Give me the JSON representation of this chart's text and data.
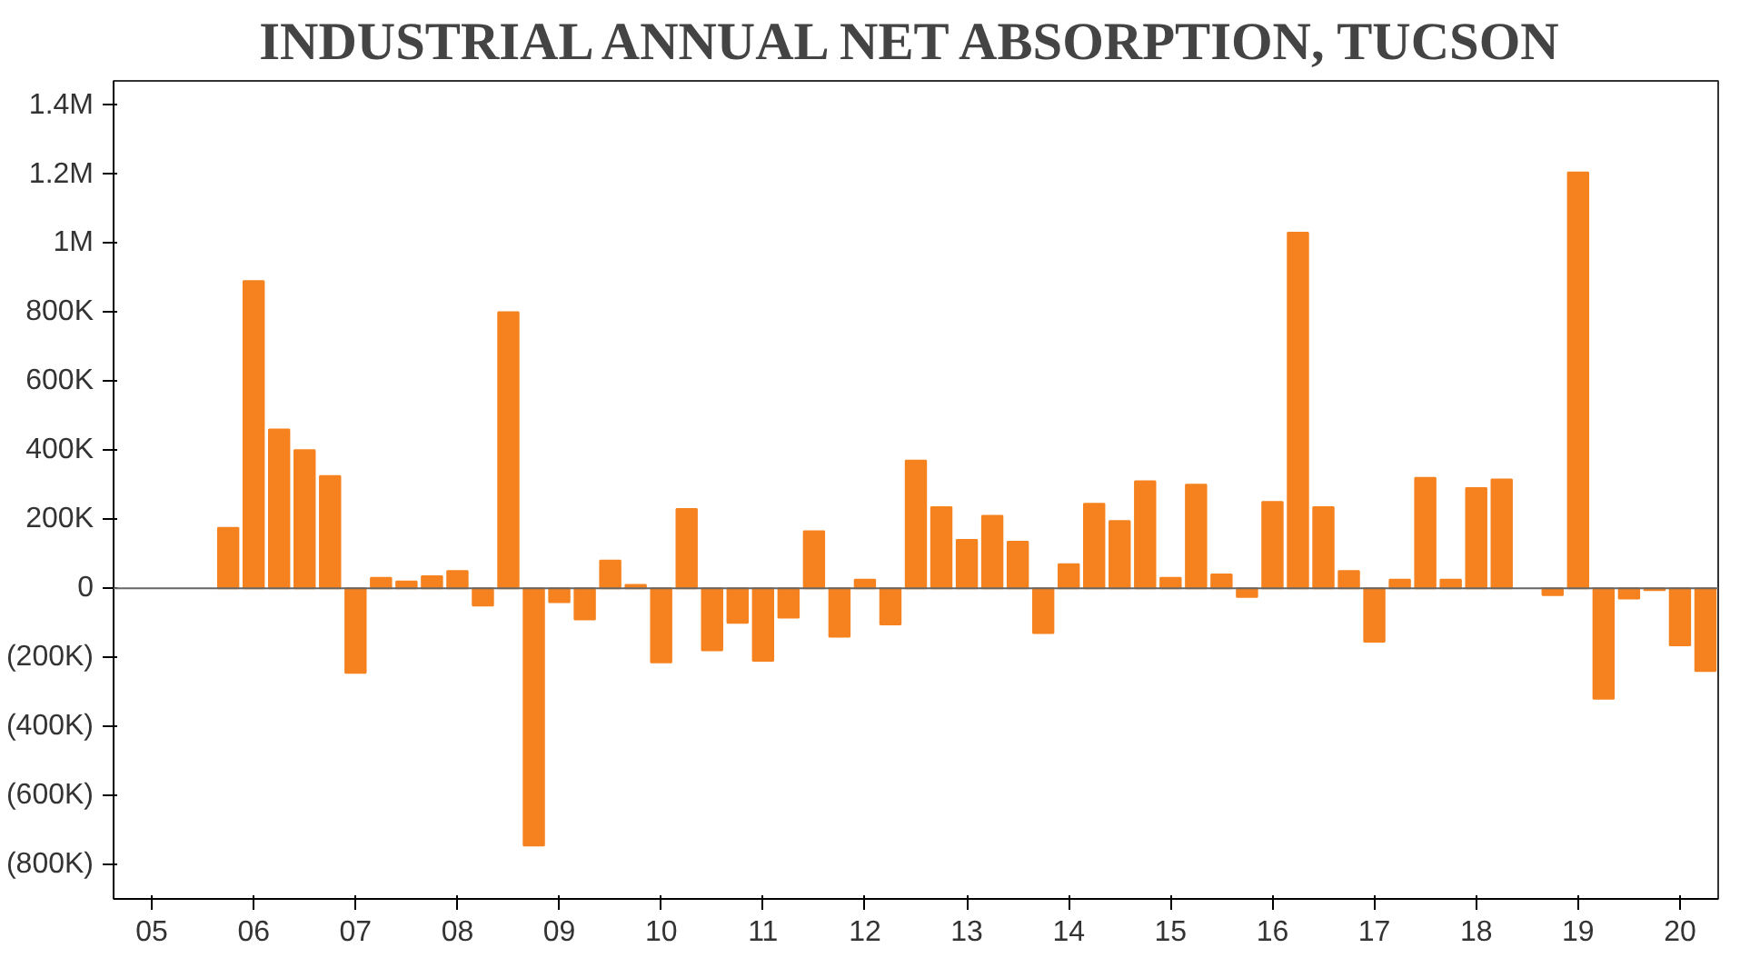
{
  "chart_data": {
    "type": "bar",
    "title": "INDUSTRIAL ANNUAL NET ABSORPTION, TUCSON",
    "categories": [
      null,
      "05",
      null,
      null,
      null,
      "06",
      null,
      null,
      null,
      "07",
      null,
      null,
      null,
      "08",
      null,
      null,
      null,
      "09",
      null,
      null,
      null,
      "10",
      null,
      null,
      null,
      "11",
      null,
      null,
      null,
      "12",
      null,
      null,
      null,
      "13",
      null,
      null,
      null,
      "14",
      null,
      null,
      null,
      "15",
      null,
      null,
      null,
      "16",
      null,
      null,
      null,
      "17",
      null,
      null,
      null,
      "18",
      null,
      null,
      null,
      "19",
      null,
      null,
      null,
      "20",
      null
    ],
    "values": [
      null,
      null,
      null,
      null,
      175000,
      890000,
      460000,
      400000,
      325000,
      -245000,
      30000,
      20000,
      35000,
      50000,
      -50000,
      800000,
      -745000,
      -40000,
      -90000,
      80000,
      10000,
      -215000,
      230000,
      -180000,
      -100000,
      -210000,
      -85000,
      165000,
      -140000,
      25000,
      -105000,
      370000,
      235000,
      140000,
      210000,
      135000,
      -130000,
      70000,
      245000,
      195000,
      310000,
      30000,
      300000,
      40000,
      -25000,
      250000,
      1030000,
      235000,
      50000,
      -155000,
      25000,
      320000,
      25000,
      290000,
      315000,
      null,
      -20000,
      1205000,
      -320000,
      -30000,
      -5000,
      -165000,
      -240000
    ],
    "color": "#f5821f",
    "ylim": [
      -900000,
      1470000
    ],
    "yticks": [
      {
        "value": -800000,
        "label": "(800K)"
      },
      {
        "value": -600000,
        "label": "(600K)"
      },
      {
        "value": -400000,
        "label": "(400K)"
      },
      {
        "value": -200000,
        "label": "(200K)"
      },
      0,
      {
        "value": 200000,
        "label": "200K"
      },
      {
        "value": 400000,
        "label": "400K"
      },
      {
        "value": 600000,
        "label": "600K"
      },
      {
        "value": 800000,
        "label": "800K"
      },
      {
        "value": 1000000,
        "label": "1M"
      },
      {
        "value": 1200000,
        "label": "1.2M"
      },
      {
        "value": 1400000,
        "label": "1.4M"
      }
    ],
    "ref_lines": [
      {
        "axis": "y",
        "value": 0,
        "color": "#666666"
      }
    ],
    "grid": false
  }
}
